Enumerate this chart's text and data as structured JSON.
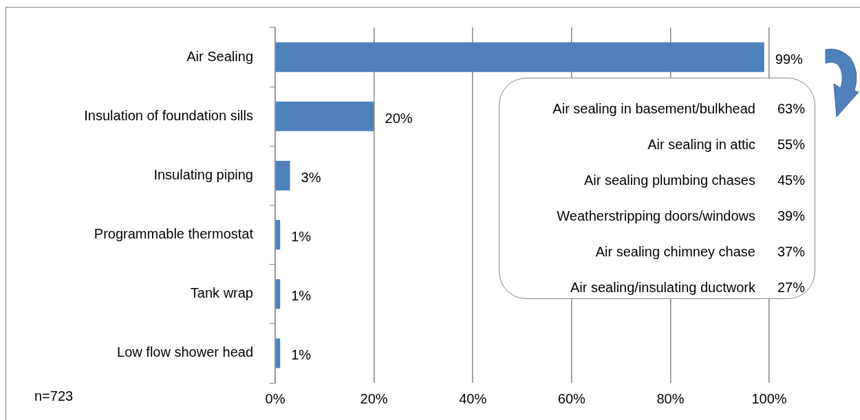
{
  "chart_data": {
    "type": "bar",
    "orientation": "horizontal",
    "categories": [
      "Air Sealing",
      "Insulation of foundation sills",
      "Insulating piping",
      "Programmable thermostat",
      "Tank wrap",
      "Low flow shower head"
    ],
    "values": [
      99,
      20,
      3,
      1,
      1,
      1
    ],
    "value_labels": [
      "99%",
      "20%",
      "3%",
      "1%",
      "1%",
      "1%"
    ],
    "color": "#4f81bd",
    "xlim": [
      0,
      100
    ],
    "xticks": [
      {
        "value": 0,
        "label": "0%"
      },
      {
        "value": 20,
        "label": "20%"
      },
      {
        "value": 40,
        "label": "40%"
      },
      {
        "value": 60,
        "label": "60%"
      },
      {
        "value": 80,
        "label": "80%"
      },
      {
        "value": 100,
        "label": "100%"
      }
    ],
    "grid": "x",
    "legend": false,
    "annotations": [
      "n=723",
      "Air sealing in basement/bulkhead 63%",
      "Air sealing in attic 55%",
      "Air sealing plumbing chases 45%",
      "Weatherstripping doors/windows 39%",
      "Air sealing chimney chase 37%",
      "Air sealing/insulating ductwork 27%"
    ]
  }
}
